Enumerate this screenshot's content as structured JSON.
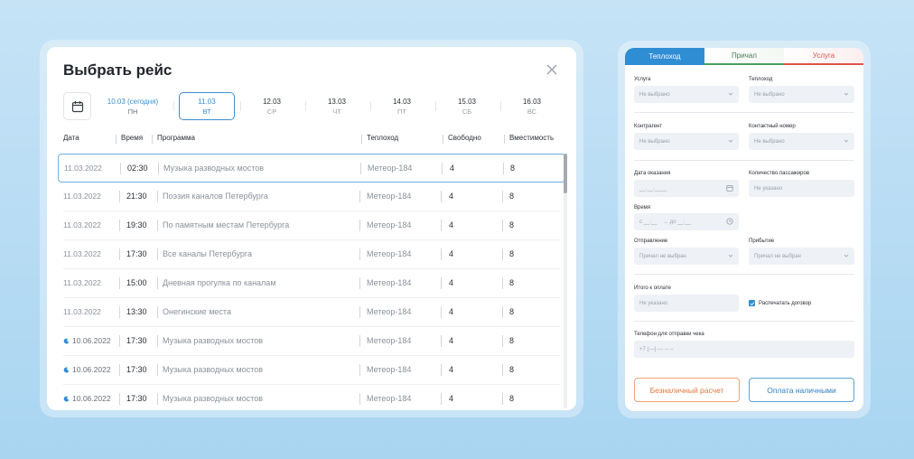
{
  "trip_dialog": {
    "title": "Выбрать рейс",
    "dates": [
      {
        "date": "10.03 (сегодня)",
        "dow": "ПН",
        "state": "today"
      },
      {
        "date": "11.03",
        "dow": "ВТ",
        "state": "selected"
      },
      {
        "date": "12.03",
        "dow": "СР",
        "state": ""
      },
      {
        "date": "13.03",
        "dow": "ЧТ",
        "state": ""
      },
      {
        "date": "14.03",
        "dow": "ПТ",
        "state": ""
      },
      {
        "date": "15.03",
        "dow": "СБ",
        "state": ""
      },
      {
        "date": "16.03",
        "dow": "ВС",
        "state": ""
      }
    ],
    "columns": [
      "Дата",
      "Время",
      "Программа",
      "Теплоход",
      "Свободно",
      "Вместимость"
    ],
    "rows": [
      {
        "date": "11.03.2022",
        "time": "02:30",
        "program": "Музыка разводных мостов",
        "ship": "Метеор-184",
        "free": "4",
        "capacity": "8",
        "night": false
      },
      {
        "date": "11.03.2022",
        "time": "21:30",
        "program": "Поэзия каналов Петербурга",
        "ship": "Метеор-184",
        "free": "4",
        "capacity": "8",
        "night": false
      },
      {
        "date": "11.03.2022",
        "time": "19:30",
        "program": "По памятным местам Петербурга",
        "ship": "Метеор-184",
        "free": "4",
        "capacity": "8",
        "night": false
      },
      {
        "date": "11.03.2022",
        "time": "17:30",
        "program": "Все каналы Петербурга",
        "ship": "Метеор-184",
        "free": "4",
        "capacity": "8",
        "night": false
      },
      {
        "date": "11.03.2022",
        "time": "15:00",
        "program": "Дневная прогулка по каналам",
        "ship": "Метеор-184",
        "free": "4",
        "capacity": "8",
        "night": false
      },
      {
        "date": "11.03.2022",
        "time": "13:30",
        "program": "Онегинские места",
        "ship": "Метеор-184",
        "free": "4",
        "capacity": "8",
        "night": false
      },
      {
        "date": "10.06.2022",
        "time": "17:30",
        "program": "Музыка разводных мостов",
        "ship": "Метеор-184",
        "free": "4",
        "capacity": "8",
        "night": true
      },
      {
        "date": "10.06.2022",
        "time": "17:30",
        "program": "Музыка разводных мостов",
        "ship": "Метеор-184",
        "free": "4",
        "capacity": "8",
        "night": true
      },
      {
        "date": "10.06.2022",
        "time": "17:30",
        "program": "Музыка разводных мостов",
        "ship": "Метеор-184",
        "free": "4",
        "capacity": "8",
        "night": true
      }
    ],
    "icons": {
      "calendar": "calendar-icon",
      "close": "close-icon",
      "night": "moon-icon"
    }
  },
  "order_form": {
    "tabs": [
      "Теплоход",
      "Причал",
      "Услуга"
    ],
    "tab_colors": {
      "active": "#2f8dd4",
      "pier": "#49a060",
      "service": "#e0534b"
    },
    "service": {
      "label": "Услуга",
      "value": "Не выбрано"
    },
    "ship": {
      "label": "Теплоход",
      "value": "Не выбрано"
    },
    "counterparty": {
      "label": "Контрагент",
      "value": "Не выбрано"
    },
    "contact_number": {
      "label": "Контактный номер",
      "value": "Не выбрано"
    },
    "service_date": {
      "label": "Дата оказания",
      "placeholder": "__.__.____"
    },
    "passengers": {
      "label": "Количество пассажиров",
      "value": "Не указано"
    },
    "time": {
      "label": "Время",
      "from": "с __:__",
      "to": "→  до __:__"
    },
    "departure": {
      "label": "Отправление",
      "value": "Причал не выбран"
    },
    "arrival": {
      "label": "Прибытие",
      "value": "Причал не выбран"
    },
    "total": {
      "label": "Итого к оплате",
      "value": "Не указано"
    },
    "print_contract": {
      "label": "Распечатать договор",
      "checked": true
    },
    "phone": {
      "label": "Телефон для отправки чека",
      "placeholder": "+7 (---) --- -- --"
    },
    "buttons": {
      "card": "Безналичный расчет",
      "cash": "Оплата наличными"
    }
  }
}
